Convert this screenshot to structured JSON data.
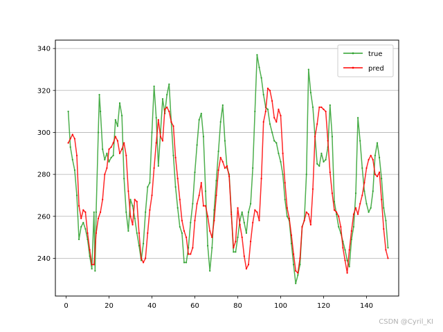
{
  "chart_data": {
    "type": "line",
    "xlim": [
      -5,
      155
    ],
    "ylim": [
      222,
      344
    ],
    "x_ticks": [
      0,
      20,
      40,
      60,
      80,
      100,
      120,
      140
    ],
    "y_ticks": [
      240,
      260,
      280,
      300,
      320,
      340
    ],
    "grid": "horizontal",
    "legend_position": "top-right",
    "series": [
      {
        "name": "true",
        "color": "#2ca02c",
        "points": [
          [
            1,
            310
          ],
          [
            2,
            293
          ],
          [
            3,
            287
          ],
          [
            4,
            282
          ],
          [
            5,
            270
          ],
          [
            6,
            249
          ],
          [
            7,
            255
          ],
          [
            8,
            257
          ],
          [
            9,
            254
          ],
          [
            10,
            249
          ],
          [
            11,
            241
          ],
          [
            12,
            235
          ],
          [
            13,
            262
          ],
          [
            13.5,
            234
          ],
          [
            14,
            262
          ],
          [
            15,
            300
          ],
          [
            15.5,
            318
          ],
          [
            16,
            310
          ],
          [
            17,
            292
          ],
          [
            18,
            287
          ],
          [
            19,
            290
          ],
          [
            20,
            286
          ],
          [
            21,
            288
          ],
          [
            22,
            289
          ],
          [
            23,
            306
          ],
          [
            24,
            303
          ],
          [
            25,
            314
          ],
          [
            26,
            308
          ],
          [
            27,
            278
          ],
          [
            28,
            262
          ],
          [
            29,
            253
          ],
          [
            30,
            268
          ],
          [
            31,
            265
          ],
          [
            32,
            259
          ],
          [
            33,
            252
          ],
          [
            34,
            246
          ],
          [
            35,
            239
          ],
          [
            36,
            247
          ],
          [
            37,
            262
          ],
          [
            38,
            274
          ],
          [
            39,
            276
          ],
          [
            40,
            300
          ],
          [
            41,
            322
          ],
          [
            42,
            307
          ],
          [
            43,
            284
          ],
          [
            44,
            300
          ],
          [
            45,
            316
          ],
          [
            46,
            309
          ],
          [
            47,
            318
          ],
          [
            48,
            323
          ],
          [
            49,
            305
          ],
          [
            50,
            289
          ],
          [
            51,
            274
          ],
          [
            52,
            264
          ],
          [
            53,
            255
          ],
          [
            54,
            252
          ],
          [
            55,
            238
          ],
          [
            56,
            238
          ],
          [
            57,
            245
          ],
          [
            58,
            257
          ],
          [
            59,
            266
          ],
          [
            60,
            281
          ],
          [
            61,
            294
          ],
          [
            62,
            306
          ],
          [
            63,
            309
          ],
          [
            64,
            298
          ],
          [
            65,
            272
          ],
          [
            66,
            246
          ],
          [
            67,
            234
          ],
          [
            68,
            245
          ],
          [
            69,
            263
          ],
          [
            70,
            277
          ],
          [
            71,
            291
          ],
          [
            72,
            305
          ],
          [
            73,
            313
          ],
          [
            74,
            296
          ],
          [
            75,
            283
          ],
          [
            76,
            280
          ],
          [
            77,
            262
          ],
          [
            78,
            243
          ],
          [
            79,
            243
          ],
          [
            80,
            250
          ],
          [
            81,
            258
          ],
          [
            82,
            262
          ],
          [
            83,
            257
          ],
          [
            84,
            252
          ],
          [
            85,
            262
          ],
          [
            86,
            266
          ],
          [
            87,
            283
          ],
          [
            88,
            310
          ],
          [
            89,
            337
          ],
          [
            90,
            331
          ],
          [
            91,
            326
          ],
          [
            92,
            318
          ],
          [
            93,
            312
          ],
          [
            94,
            311
          ],
          [
            95,
            304
          ],
          [
            96,
            300
          ],
          [
            97,
            296
          ],
          [
            98,
            295
          ],
          [
            99,
            290
          ],
          [
            100,
            286
          ],
          [
            101,
            280
          ],
          [
            102,
            268
          ],
          [
            103,
            260
          ],
          [
            104,
            258
          ],
          [
            105,
            247
          ],
          [
            106,
            237
          ],
          [
            107,
            228
          ],
          [
            108,
            232
          ],
          [
            109,
            237
          ],
          [
            110,
            255
          ],
          [
            111,
            258
          ],
          [
            112,
            280
          ],
          [
            113,
            330
          ],
          [
            114,
            319
          ],
          [
            115,
            312
          ],
          [
            116,
            298
          ],
          [
            117,
            285
          ],
          [
            118,
            284
          ],
          [
            119,
            290
          ],
          [
            120,
            286
          ],
          [
            121,
            287
          ],
          [
            122,
            293
          ],
          [
            123,
            313
          ],
          [
            124,
            298
          ],
          [
            125,
            267
          ],
          [
            126,
            261
          ],
          [
            127,
            255
          ],
          [
            128,
            252
          ],
          [
            129,
            248
          ],
          [
            130,
            244
          ],
          [
            131,
            239
          ],
          [
            132,
            236
          ],
          [
            133,
            249
          ],
          [
            134,
            255
          ],
          [
            135,
            271
          ],
          [
            136,
            307
          ],
          [
            137,
            296
          ],
          [
            138,
            283
          ],
          [
            139,
            272
          ],
          [
            140,
            266
          ],
          [
            141,
            262
          ],
          [
            142,
            264
          ],
          [
            143,
            272
          ],
          [
            144,
            289
          ],
          [
            145,
            295
          ],
          [
            146,
            288
          ],
          [
            147,
            278
          ],
          [
            148,
            264
          ],
          [
            149,
            258
          ],
          [
            150,
            245
          ]
        ]
      },
      {
        "name": "pred",
        "color": "#ff0000",
        "points": [
          [
            1,
            295
          ],
          [
            2,
            297
          ],
          [
            3,
            299
          ],
          [
            4,
            297
          ],
          [
            5,
            289
          ],
          [
            6,
            265
          ],
          [
            7,
            259
          ],
          [
            8,
            263
          ],
          [
            9,
            262
          ],
          [
            10,
            252
          ],
          [
            11,
            244
          ],
          [
            12,
            237
          ],
          [
            13,
            237
          ],
          [
            14,
            252
          ],
          [
            15,
            259
          ],
          [
            16,
            262
          ],
          [
            17,
            268
          ],
          [
            18,
            280
          ],
          [
            19,
            283
          ],
          [
            20,
            292
          ],
          [
            21,
            293
          ],
          [
            22,
            295
          ],
          [
            23,
            298
          ],
          [
            24,
            296
          ],
          [
            25,
            290
          ],
          [
            26,
            292
          ],
          [
            27,
            295
          ],
          [
            28,
            289
          ],
          [
            29,
            272
          ],
          [
            30,
            260
          ],
          [
            31,
            256
          ],
          [
            32,
            268
          ],
          [
            33,
            267
          ],
          [
            34,
            252
          ],
          [
            35,
            240
          ],
          [
            36,
            238
          ],
          [
            37,
            240
          ],
          [
            38,
            252
          ],
          [
            39,
            263
          ],
          [
            40,
            270
          ],
          [
            41,
            283
          ],
          [
            42,
            295
          ],
          [
            43,
            306
          ],
          [
            44,
            298
          ],
          [
            45,
            296
          ],
          [
            46,
            311
          ],
          [
            47,
            312
          ],
          [
            48,
            310
          ],
          [
            49,
            305
          ],
          [
            50,
            303
          ],
          [
            51,
            288
          ],
          [
            52,
            278
          ],
          [
            53,
            268
          ],
          [
            54,
            258
          ],
          [
            55,
            253
          ],
          [
            56,
            250
          ],
          [
            57,
            242
          ],
          [
            58,
            242
          ],
          [
            59,
            245
          ],
          [
            60,
            258
          ],
          [
            61,
            266
          ],
          [
            62,
            270
          ],
          [
            63,
            276
          ],
          [
            64,
            265
          ],
          [
            65,
            265
          ],
          [
            66,
            260
          ],
          [
            67,
            253
          ],
          [
            68,
            250
          ],
          [
            69,
            258
          ],
          [
            70,
            270
          ],
          [
            71,
            282
          ],
          [
            72,
            288
          ],
          [
            73,
            286
          ],
          [
            74,
            283
          ],
          [
            75,
            284
          ],
          [
            76,
            279
          ],
          [
            77,
            261
          ],
          [
            78,
            245
          ],
          [
            79,
            248
          ],
          [
            80,
            264
          ],
          [
            81,
            256
          ],
          [
            82,
            250
          ],
          [
            83,
            241
          ],
          [
            84,
            235
          ],
          [
            85,
            237
          ],
          [
            86,
            248
          ],
          [
            87,
            257
          ],
          [
            88,
            263
          ],
          [
            89,
            262
          ],
          [
            90,
            258
          ],
          [
            91,
            278
          ],
          [
            92,
            305
          ],
          [
            93,
            310
          ],
          [
            94,
            321
          ],
          [
            95,
            320
          ],
          [
            96,
            315
          ],
          [
            97,
            307
          ],
          [
            98,
            305
          ],
          [
            99,
            311
          ],
          [
            100,
            308
          ],
          [
            101,
            290
          ],
          [
            102,
            276
          ],
          [
            103,
            264
          ],
          [
            104,
            259
          ],
          [
            105,
            251
          ],
          [
            106,
            242
          ],
          [
            107,
            234
          ],
          [
            108,
            233
          ],
          [
            109,
            240
          ],
          [
            110,
            255
          ],
          [
            111,
            258
          ],
          [
            112,
            262
          ],
          [
            113,
            261
          ],
          [
            114,
            256
          ],
          [
            115,
            273
          ],
          [
            116,
            298
          ],
          [
            117,
            304
          ],
          [
            118,
            312
          ],
          [
            119,
            312
          ],
          [
            120,
            311
          ],
          [
            121,
            310
          ],
          [
            122,
            296
          ],
          [
            123,
            281
          ],
          [
            124,
            271
          ],
          [
            125,
            263
          ],
          [
            126,
            262
          ],
          [
            127,
            260
          ],
          [
            128,
            255
          ],
          [
            129,
            245
          ],
          [
            130,
            239
          ],
          [
            131,
            233
          ],
          [
            132,
            244
          ],
          [
            133,
            253
          ],
          [
            134,
            261
          ],
          [
            135,
            264
          ],
          [
            136,
            261
          ],
          [
            137,
            266
          ],
          [
            138,
            270
          ],
          [
            139,
            276
          ],
          [
            140,
            283
          ],
          [
            141,
            287
          ],
          [
            142,
            289
          ],
          [
            143,
            287
          ],
          [
            144,
            280
          ],
          [
            145,
            279
          ],
          [
            146,
            281
          ],
          [
            147,
            268
          ],
          [
            148,
            254
          ],
          [
            149,
            244
          ],
          [
            150,
            240
          ]
        ]
      }
    ]
  },
  "watermark": "CSDN @Cyril_KI"
}
